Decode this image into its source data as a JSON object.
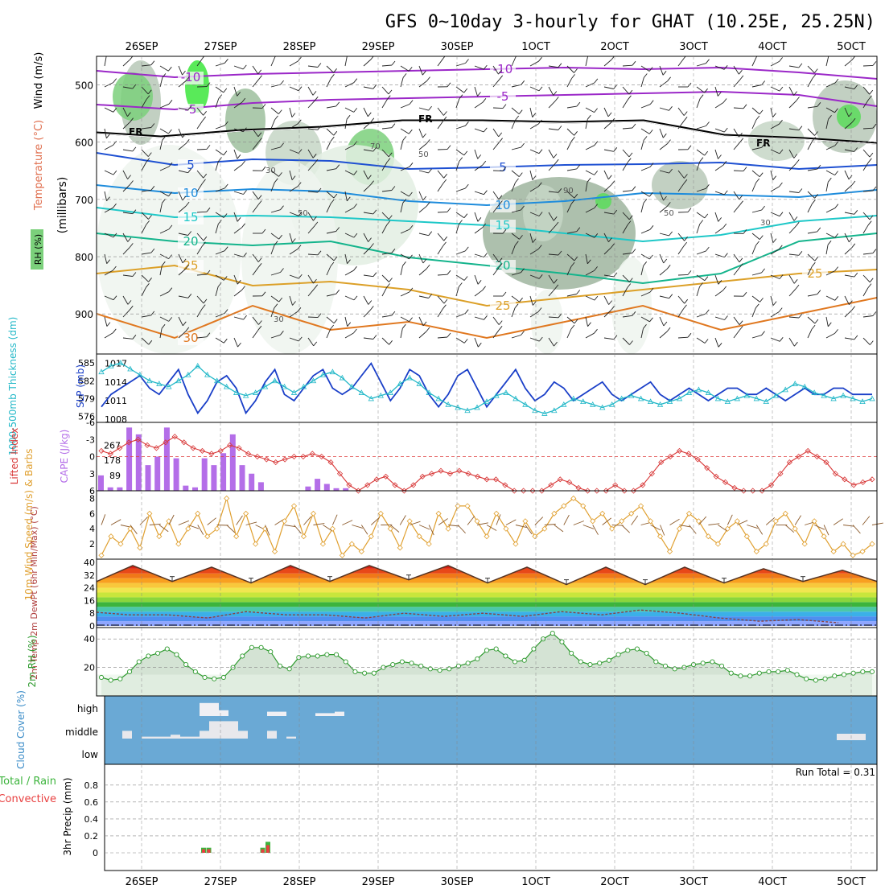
{
  "chart_data": {
    "type": "meteogram",
    "title": "GFS 0~10day 3-hourly for GHAT (10.25E, 25.25N)",
    "date_labels": [
      "26SEP",
      "27SEP",
      "28SEP",
      "29SEP",
      "30SEP",
      "1OCT",
      "2OCT",
      "3OCT",
      "4OCT",
      "5OCT"
    ],
    "panels": [
      {
        "name": "upper-air",
        "ylabel": "(millibars)",
        "legend": [
          "RH (%)",
          "Temperature (°C)",
          "Wind (m/s)"
        ],
        "yticks": [
          500,
          600,
          700,
          800,
          900
        ],
        "ylim": [
          450,
          970
        ],
        "freezing_label": "FR",
        "isotherms": [
          {
            "value": -10,
            "labels": [
              "-10",
              "-10"
            ],
            "color": "#9b28c8"
          },
          {
            "value": -5,
            "labels": [
              "-5",
              "-5"
            ],
            "color": "#9b28c8"
          },
          {
            "value": 5,
            "labels": [
              "5",
              "5"
            ],
            "color": "#1e50d2"
          },
          {
            "value": 10,
            "labels": [
              "10",
              "10"
            ],
            "color": "#1e8cdc"
          },
          {
            "value": 15,
            "labels": [
              "15",
              "15"
            ],
            "color": "#1ec8c8"
          },
          {
            "value": 20,
            "labels": [
              "20",
              "20"
            ],
            "color": "#14b48c"
          },
          {
            "value": 25,
            "labels": [
              "25",
              "25",
              "25"
            ],
            "color": "#dca028"
          },
          {
            "value": 30,
            "labels": [
              "30"
            ],
            "color": "#e07820"
          }
        ],
        "rh_contour_labels": [
          "30",
          "50",
          "70",
          "90"
        ]
      },
      {
        "name": "thickness-slp",
        "ylabel_left": "1000-500mb Thickness (dm)",
        "ylabel_right": "SLP (mb)",
        "yticks_left": [
          585,
          582,
          579,
          576
        ],
        "yticks_right": [
          1017,
          1014,
          1011,
          1008
        ],
        "slp": [
          1010,
          1012,
          1013,
          1014,
          1015,
          1013,
          1012,
          1014,
          1016,
          1012,
          1009,
          1011,
          1014,
          1015,
          1013,
          1009,
          1011,
          1014,
          1016,
          1012,
          1011,
          1013,
          1015,
          1016,
          1013,
          1012,
          1013,
          1015,
          1017,
          1014,
          1011,
          1013,
          1016,
          1015,
          1012,
          1010,
          1012,
          1015,
          1016,
          1013,
          1010,
          1012,
          1014,
          1016,
          1013,
          1011,
          1012,
          1014,
          1013,
          1011,
          1012,
          1013,
          1014,
          1012,
          1011,
          1012,
          1013,
          1014,
          1012,
          1011,
          1012,
          1013,
          1012,
          1011,
          1012,
          1013,
          1013,
          1012,
          1012,
          1013,
          1012,
          1011,
          1012,
          1013,
          1012,
          1012,
          1013,
          1013,
          1012,
          1012,
          1012
        ],
        "thickness": [
          583.5,
          584.5,
          585,
          584,
          583,
          582,
          581.5,
          581,
          582,
          583,
          584.5,
          583,
          582,
          581,
          580,
          579.5,
          580,
          581,
          582,
          581,
          580,
          581,
          582,
          583,
          583.5,
          582.5,
          581,
          580,
          579,
          579.5,
          580,
          581.5,
          582.5,
          581.5,
          580,
          579,
          578,
          577.5,
          577,
          577.5,
          578.5,
          579.5,
          580,
          579,
          578,
          577,
          576.5,
          577,
          578,
          579,
          578.5,
          578,
          577.5,
          578,
          579,
          579.5,
          579,
          578.5,
          578,
          578.5,
          579,
          580,
          580.5,
          580,
          579,
          578.5,
          579,
          579.5,
          579,
          578.5,
          579.5,
          580.5,
          581.5,
          581,
          580,
          579.5,
          579,
          579.5,
          579,
          578.5,
          579
        ]
      },
      {
        "name": "stability",
        "ylabel_left": "Lifted Index",
        "ylabel_right": "CAPE (J/kg)",
        "yticks_left": [
          -6,
          -3,
          0,
          3,
          6
        ],
        "yticks_right": [
          267,
          178,
          89
        ],
        "cape_bars": [
          90,
          20,
          20,
          370,
          330,
          150,
          200,
          370,
          190,
          30,
          20,
          190,
          150,
          220,
          330,
          150,
          100,
          50,
          0,
          0,
          0,
          0,
          25,
          70,
          40,
          15,
          15
        ],
        "lifted_index": [
          -1,
          -0.5,
          -1.5,
          -2.5,
          -3,
          -2,
          -1.5,
          -2.5,
          -3.5,
          -2.5,
          -1.5,
          -1,
          -0.5,
          -1,
          -2,
          -1.5,
          -0.5,
          0,
          0.5,
          1,
          0.5,
          0,
          0,
          -0.5,
          0,
          1,
          3,
          5,
          6,
          5,
          4,
          3.5,
          5,
          6,
          5,
          3.5,
          3,
          2.5,
          3,
          2.5,
          3,
          3.5,
          4,
          4,
          5,
          6,
          6,
          6,
          6,
          5,
          4,
          4.5,
          5.5,
          6,
          6,
          6,
          5,
          6,
          6,
          5,
          3,
          1,
          0,
          -1,
          -0.5,
          0.5,
          2,
          3.5,
          4.5,
          5.5,
          6,
          6,
          6,
          5,
          3,
          1,
          0,
          -1,
          0,
          1,
          3,
          4,
          5,
          4.5,
          4
        ]
      },
      {
        "name": "wind10m",
        "ylabel": "10m Wind Speed (m/s) & Barbs",
        "yticks": [
          8,
          6,
          4,
          2
        ],
        "speed": [
          0.5,
          3,
          2,
          4,
          1.5,
          6,
          3,
          5,
          2,
          4,
          6,
          3,
          4,
          8,
          3,
          6,
          2,
          4,
          1,
          5,
          7,
          3,
          6,
          2,
          4,
          0.5,
          2,
          1,
          3,
          6,
          4,
          1.5,
          5,
          3,
          2,
          6,
          4,
          7,
          7,
          5,
          3,
          6,
          4,
          2,
          5,
          3,
          4,
          6,
          7,
          8,
          7,
          5,
          6,
          4,
          5,
          6,
          7,
          5,
          3,
          1,
          4,
          6,
          5,
          3,
          2,
          4,
          5,
          3,
          1,
          2,
          5,
          6,
          4,
          2,
          5,
          3,
          1,
          2,
          0.5,
          1,
          2
        ]
      },
      {
        "name": "temp2m",
        "ylabel": "2m Temp 2m DewPt (6hr Min/Max) (°C)",
        "yticks": [
          40,
          32,
          24,
          16,
          8,
          0
        ],
        "temp_max": [
          38,
          37,
          38,
          38,
          38,
          37,
          37,
          37,
          36,
          35
        ],
        "temp_min": [
          27,
          28,
          27,
          28,
          29,
          27,
          26,
          26,
          27,
          28
        ],
        "dewpt": [
          7,
          5,
          7,
          5,
          6,
          6,
          7,
          8,
          3,
          2
        ]
      },
      {
        "name": "rh2m",
        "ylabel": "2m RH (%)",
        "yticks": [
          40,
          20
        ],
        "values": [
          13,
          11,
          12,
          17,
          24,
          28,
          30,
          33,
          29,
          22,
          17,
          13,
          12,
          13,
          20,
          28,
          34,
          34,
          31,
          21,
          19,
          27,
          28,
          28,
          29,
          29,
          24,
          17,
          16,
          16,
          20,
          22,
          24,
          23,
          21,
          19,
          18,
          19,
          21,
          23,
          26,
          32,
          33,
          28,
          24,
          25,
          33,
          40,
          44,
          38,
          30,
          24,
          22,
          23,
          25,
          29,
          32,
          33,
          30,
          24,
          21,
          19,
          20,
          22,
          23,
          24,
          21,
          16,
          14,
          14,
          16,
          17,
          17,
          18,
          15,
          12,
          11,
          12,
          14,
          15,
          16,
          17,
          17
        ]
      },
      {
        "name": "cloud",
        "ylabel": "Cloud Cover (%)",
        "levels": [
          "high",
          "middle",
          "low"
        ],
        "high": [
          0,
          0,
          0,
          0,
          0,
          0,
          0,
          0,
          0,
          90,
          90,
          40,
          0,
          0,
          0,
          0,
          30,
          30,
          0,
          0,
          0,
          20,
          20,
          30,
          0,
          0,
          0,
          0,
          0,
          0
        ],
        "middle": [
          0,
          40,
          0,
          10,
          10,
          10,
          20,
          10,
          10,
          40,
          90,
          90,
          90,
          40,
          0,
          0,
          40,
          0,
          10,
          0,
          0,
          0,
          0,
          0,
          0,
          0,
          0,
          0,
          0,
          0
        ]
      },
      {
        "name": "precip",
        "ylabel": "3hr Precip (mm)",
        "legend": [
          "Total / Rain",
          "Convective"
        ],
        "yticks": [
          0.8,
          0.6,
          0.4,
          0.2,
          0
        ],
        "run_total_label": "Run Total = 0.31",
        "bars": [
          0,
          0,
          0,
          0,
          0,
          0,
          0,
          0,
          0,
          0.06,
          0.06,
          0,
          0,
          0,
          0,
          0,
          0.06,
          0.13,
          0,
          0,
          0,
          0,
          0,
          0,
          0,
          0,
          0,
          0,
          0,
          0
        ]
      }
    ]
  }
}
